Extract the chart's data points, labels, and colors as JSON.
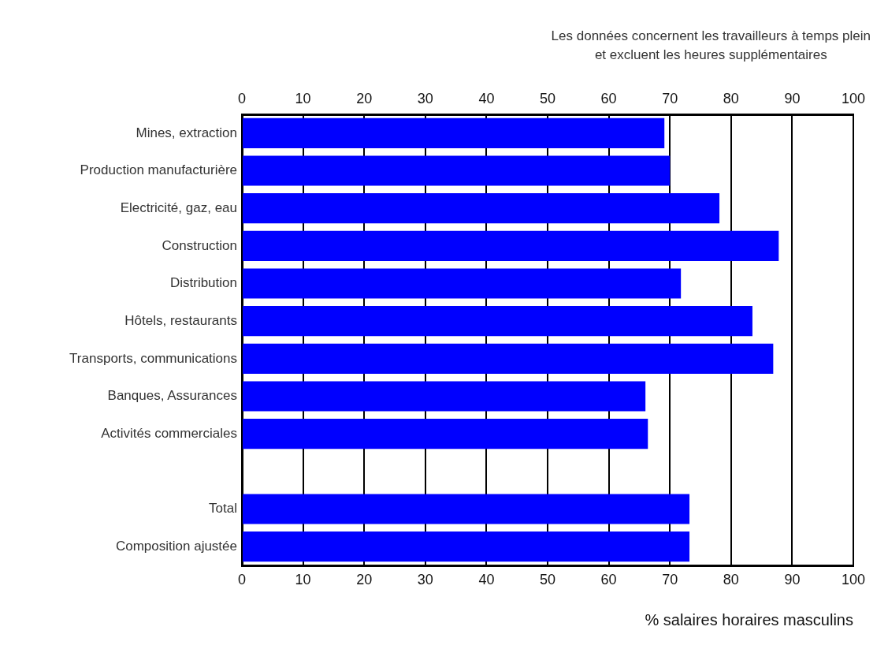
{
  "chart_data": {
    "type": "bar",
    "orientation": "horizontal",
    "categories": [
      "Mines, extraction",
      "Production manufacturière",
      "Electricité, gaz, eau",
      "Construction",
      "Distribution",
      "Hôtels, restaurants",
      "Transports, communications",
      "Banques, Assurances",
      "Activités commerciales",
      null,
      "Total",
      "Composition ajustée"
    ],
    "values": [
      69.1,
      70,
      78.1,
      87.8,
      71.8,
      83.5,
      86.9,
      66,
      66.4,
      null,
      73.2,
      73.2
    ],
    "color": "#0000ff",
    "xlabel": "% salaires horaires masculins",
    "xlim": [
      0,
      100
    ],
    "xticks": [
      0,
      10,
      20,
      30,
      40,
      50,
      60,
      70,
      80,
      90,
      100
    ],
    "x2lim": [
      0,
      100
    ],
    "x2ticks": [
      0,
      10,
      20,
      30,
      40,
      50,
      60,
      70,
      80,
      90,
      100
    ],
    "grid": "x",
    "annotations": [
      "Les données concernent les travailleurs à temps plein",
      "et excluent les heures supplémentaires"
    ]
  }
}
